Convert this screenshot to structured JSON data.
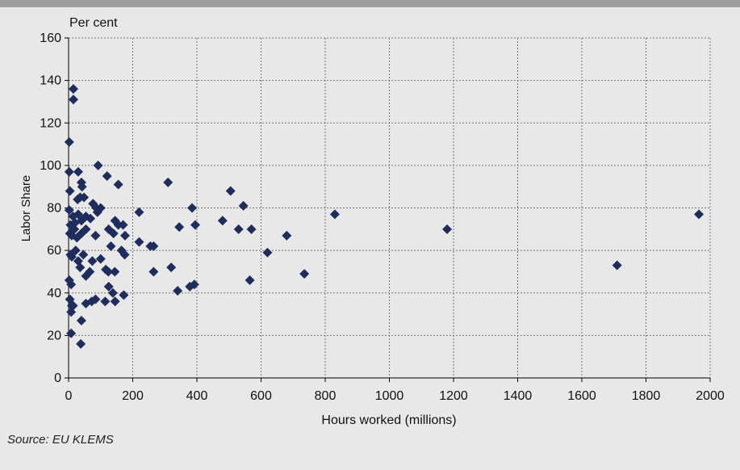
{
  "chart_data": {
    "type": "scatter",
    "ylabel_top": "Per cent",
    "ylabel": "Labor Share",
    "xlabel": "Hours worked (millions)",
    "xlim": [
      0,
      2000
    ],
    "ylim": [
      0,
      160
    ],
    "x_ticks": [
      0,
      200,
      400,
      600,
      800,
      1000,
      1200,
      1400,
      1600,
      1800,
      2000
    ],
    "y_ticks": [
      0,
      20,
      40,
      60,
      80,
      100,
      120,
      140,
      160
    ],
    "grid": true,
    "marker": "diamond",
    "marker_color": "#1f2d5c",
    "points": [
      [
        2,
        111
      ],
      [
        15,
        136
      ],
      [
        15,
        131
      ],
      [
        2,
        97
      ],
      [
        30,
        97
      ],
      [
        92,
        100
      ],
      [
        4,
        88
      ],
      [
        28,
        84
      ],
      [
        36,
        85
      ],
      [
        48,
        85
      ],
      [
        42,
        90
      ],
      [
        40,
        92
      ],
      [
        120,
        95
      ],
      [
        155,
        91
      ],
      [
        310,
        92
      ],
      [
        505,
        88
      ],
      [
        2,
        79
      ],
      [
        6,
        72
      ],
      [
        14,
        76
      ],
      [
        20,
        73
      ],
      [
        30,
        77
      ],
      [
        40,
        74
      ],
      [
        54,
        76
      ],
      [
        76,
        82
      ],
      [
        86,
        80
      ],
      [
        90,
        78
      ],
      [
        100,
        80
      ],
      [
        145,
        74
      ],
      [
        155,
        72
      ],
      [
        170,
        72
      ],
      [
        220,
        78
      ],
      [
        385,
        80
      ],
      [
        395,
        72
      ],
      [
        4,
        68
      ],
      [
        10,
        67
      ],
      [
        18,
        70
      ],
      [
        26,
        66
      ],
      [
        40,
        68
      ],
      [
        54,
        70
      ],
      [
        68,
        75
      ],
      [
        84,
        67
      ],
      [
        125,
        70
      ],
      [
        140,
        68
      ],
      [
        176,
        67
      ],
      [
        220,
        64
      ],
      [
        255,
        62
      ],
      [
        265,
        62
      ],
      [
        345,
        71
      ],
      [
        480,
        74
      ],
      [
        530,
        70
      ],
      [
        545,
        81
      ],
      [
        570,
        70
      ],
      [
        680,
        67
      ],
      [
        830,
        77
      ],
      [
        1180,
        70
      ],
      [
        1965,
        77
      ],
      [
        6,
        58
      ],
      [
        22,
        60
      ],
      [
        30,
        55
      ],
      [
        36,
        52
      ],
      [
        46,
        58
      ],
      [
        54,
        48
      ],
      [
        66,
        50
      ],
      [
        74,
        55
      ],
      [
        100,
        56
      ],
      [
        116,
        51
      ],
      [
        124,
        50
      ],
      [
        132,
        62
      ],
      [
        144,
        50
      ],
      [
        165,
        60
      ],
      [
        175,
        58
      ],
      [
        265,
        50
      ],
      [
        320,
        52
      ],
      [
        620,
        59
      ],
      [
        1710,
        53
      ],
      [
        2,
        46
      ],
      [
        8,
        44
      ],
      [
        10,
        57
      ],
      [
        54,
        35
      ],
      [
        72,
        36
      ],
      [
        84,
        37
      ],
      [
        114,
        36
      ],
      [
        125,
        43
      ],
      [
        138,
        40
      ],
      [
        145,
        36
      ],
      [
        172,
        39
      ],
      [
        340,
        41
      ],
      [
        378,
        43
      ],
      [
        392,
        44
      ],
      [
        565,
        46
      ],
      [
        735,
        49
      ],
      [
        4,
        37
      ],
      [
        10,
        34
      ],
      [
        8,
        31
      ],
      [
        14,
        34
      ],
      [
        40,
        27
      ],
      [
        8,
        21
      ],
      [
        38,
        16
      ]
    ]
  },
  "source_note": "Source: EU KLEMS"
}
